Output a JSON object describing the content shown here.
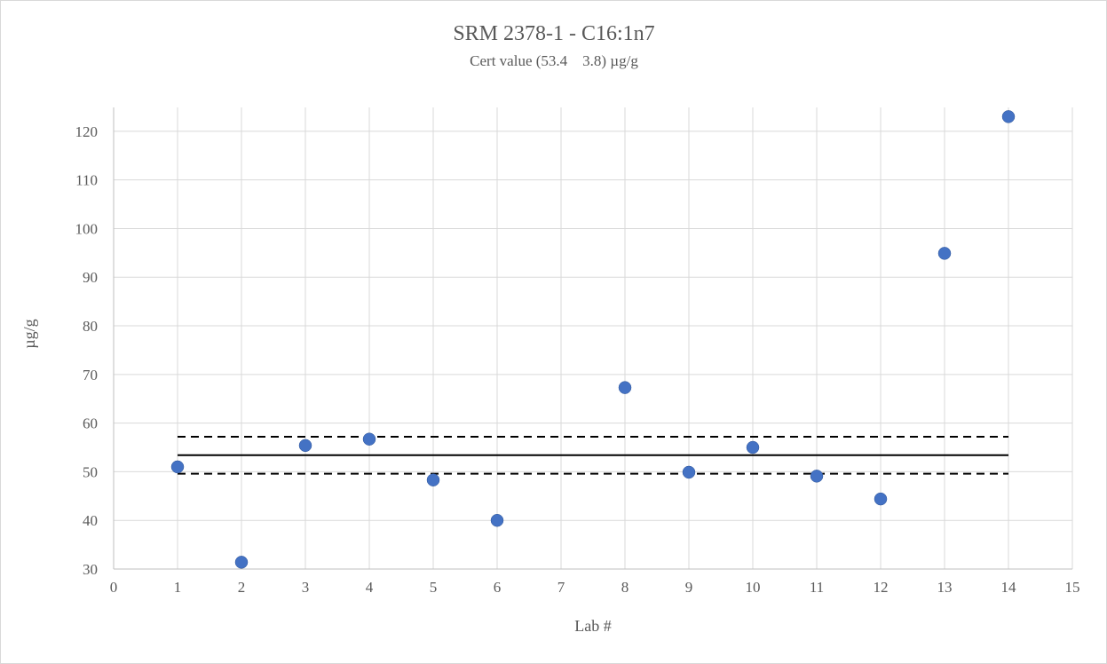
{
  "chart_data": {
    "type": "scatter",
    "title": "SRM 2378-1 - C16:1n7",
    "subtitle": "Cert value (53.4    3.8) µg/g",
    "xlabel": "Lab #",
    "ylabel": "µg/g",
    "xlim": [
      0,
      15
    ],
    "ylim": [
      30,
      125
    ],
    "x_ticks": [
      0,
      1,
      2,
      3,
      4,
      5,
      6,
      7,
      8,
      9,
      10,
      11,
      12,
      13,
      14,
      15
    ],
    "y_ticks": [
      30,
      40,
      50,
      60,
      70,
      80,
      90,
      100,
      110,
      120
    ],
    "grid": true,
    "legend": "none",
    "series": [
      {
        "x": [
          1,
          2,
          3,
          4,
          5,
          6,
          8,
          9,
          10,
          11,
          12,
          13,
          14
        ],
        "y": [
          51.0,
          31.4,
          55.4,
          56.7,
          48.3,
          40.0,
          67.3,
          49.9,
          55.0,
          49.1,
          44.4,
          94.9,
          123.0
        ],
        "color": "#4472c4"
      }
    ],
    "reference_lines": [
      {
        "kind": "certified-value",
        "y": 53.4,
        "x_range": [
          1,
          14
        ],
        "style": "solid"
      },
      {
        "kind": "upper-limit",
        "y": 57.2,
        "x_range": [
          1,
          14
        ],
        "style": "dashed"
      },
      {
        "kind": "lower-limit",
        "y": 49.6,
        "x_range": [
          1,
          14
        ],
        "style": "dashed"
      }
    ]
  }
}
